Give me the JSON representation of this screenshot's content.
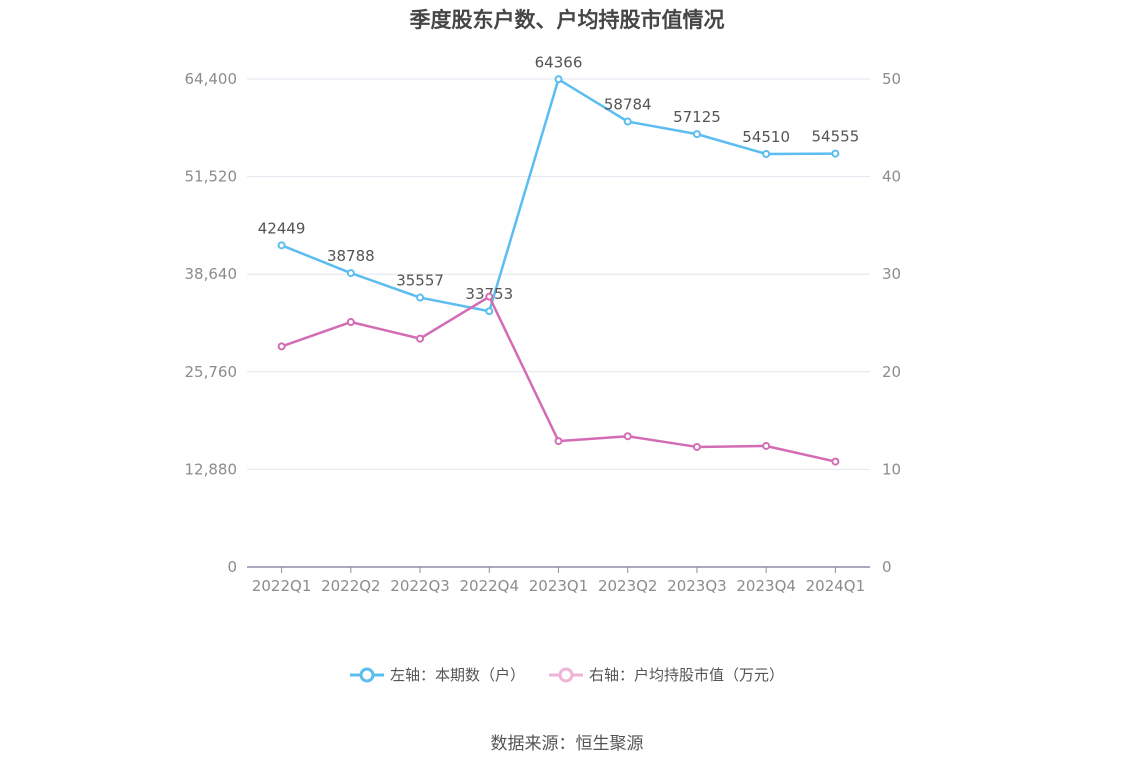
{
  "chart_data": {
    "type": "line",
    "title": "季度股东户数、户均持股市值情况",
    "categories": [
      "2022Q1",
      "2022Q2",
      "2022Q3",
      "2022Q4",
      "2023Q1",
      "2023Q2",
      "2023Q3",
      "2023Q4",
      "2024Q1"
    ],
    "series": [
      {
        "name": "左轴：本期数（户）",
        "axis": "left",
        "color": "#5bbdf0",
        "values": [
          42449,
          38788,
          35557,
          33753,
          64366,
          58784,
          57125,
          54510,
          54555
        ],
        "labels": [
          "42449",
          "38788",
          "35557",
          "33753",
          "64366",
          "58784",
          "57125",
          "54510",
          "54555"
        ]
      },
      {
        "name": "右轴：户均持股市值（万元）",
        "axis": "right",
        "color": "#d36cb5",
        "values": [
          22.6,
          25.1,
          23.4,
          27.7,
          12.9,
          13.4,
          12.3,
          12.4,
          10.8
        ]
      }
    ],
    "y_left": {
      "ylim": [
        0,
        64400
      ],
      "ticks": [
        0,
        12880,
        25760,
        38640,
        51520,
        64400
      ],
      "tick_labels": [
        "0",
        "12,880",
        "25,760",
        "38,640",
        "51,520",
        "64,400"
      ]
    },
    "y_right": {
      "ylim": [
        0,
        50
      ],
      "ticks": [
        0,
        10,
        20,
        30,
        40,
        50
      ],
      "tick_labels": [
        "0",
        "10",
        "20",
        "30",
        "40",
        "50"
      ]
    },
    "grid": true,
    "legend_position": "bottom"
  },
  "source_note": "数据来源：恒生聚源"
}
